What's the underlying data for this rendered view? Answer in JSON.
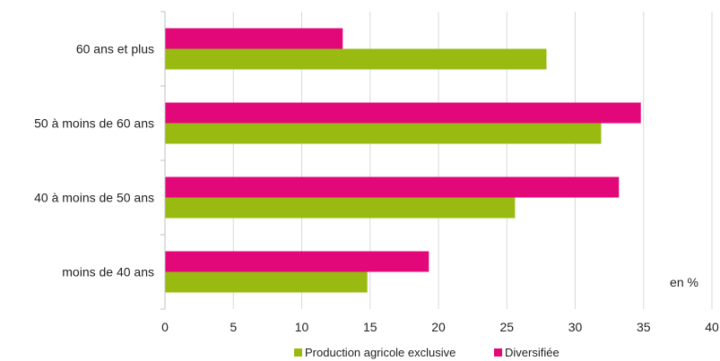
{
  "chart_data": {
    "type": "bar",
    "orientation": "horizontal",
    "categories": [
      "moins de 40 ans",
      "40 à  moins de 50 ans",
      "50 à  moins de 60 ans",
      "60 ans et plus"
    ],
    "series": [
      {
        "name": "Production agricole exclusive",
        "color": "#99bb11",
        "values": [
          14.8,
          25.6,
          31.9,
          27.9
        ]
      },
      {
        "name": "Diversifiée",
        "color": "#e2087a",
        "values": [
          19.3,
          33.2,
          34.8,
          13.0
        ]
      }
    ],
    "xlim": [
      0,
      40
    ],
    "xticks": [
      0,
      5,
      10,
      15,
      20,
      25,
      30,
      35,
      40
    ],
    "unit_label": "en %",
    "grid": "vertical",
    "legend_position": "bottom"
  }
}
